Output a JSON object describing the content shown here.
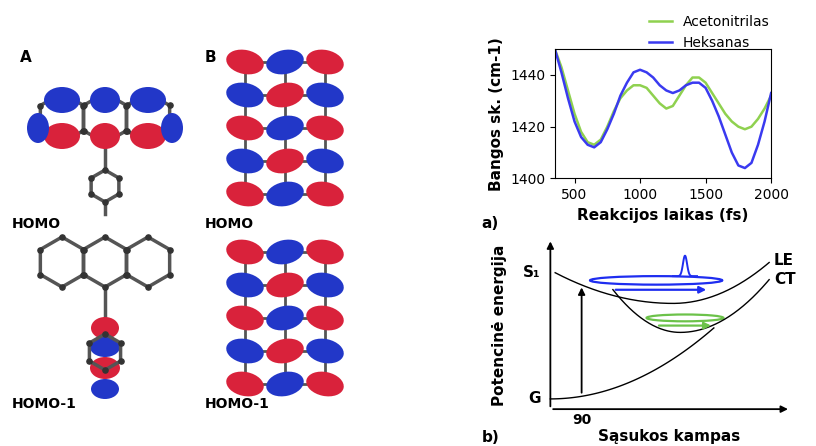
{
  "chart_data": {
    "type": "line",
    "panel_label": "a)",
    "x_label": "Reakcijos laikas (fs)",
    "y_label": "Bangos sk. (cm-1)",
    "x": [
      350,
      400,
      450,
      500,
      550,
      600,
      650,
      700,
      750,
      800,
      850,
      900,
      950,
      1000,
      1050,
      1100,
      1150,
      1200,
      1250,
      1300,
      1350,
      1400,
      1450,
      1500,
      1550,
      1600,
      1650,
      1700,
      1750,
      1800,
      1850,
      1900,
      1950,
      2000
    ],
    "series": [
      {
        "name": "Acetonitrilas",
        "color": "#8fd14f",
        "values": [
          1450,
          1443,
          1434,
          1425,
          1418,
          1414,
          1413,
          1415,
          1420,
          1426,
          1431,
          1434,
          1436,
          1436,
          1435,
          1432,
          1429,
          1427,
          1428,
          1432,
          1436,
          1439,
          1439,
          1437,
          1433,
          1429,
          1425,
          1422,
          1420,
          1419,
          1420,
          1423,
          1427,
          1432
        ]
      },
      {
        "name": "Heksanas",
        "color": "#3a3af0",
        "values": [
          1450,
          1441,
          1431,
          1422,
          1416,
          1413,
          1412,
          1414,
          1419,
          1425,
          1432,
          1437,
          1441,
          1442,
          1441,
          1439,
          1436,
          1434,
          1433,
          1434,
          1436,
          1437,
          1437,
          1435,
          1430,
          1424,
          1417,
          1410,
          1405,
          1404,
          1406,
          1413,
          1422,
          1433
        ]
      }
    ],
    "xlim": [
      350,
      2000
    ],
    "xticks": [
      500,
      1000,
      1500,
      2000
    ],
    "ylim": [
      1400,
      1450
    ],
    "yticks": [
      1400,
      1420,
      1440
    ],
    "legend": "upper right",
    "grid": false
  },
  "orbital_panels": [
    {
      "label": "A",
      "orbitals": [
        "HOMO",
        "HOMO-1"
      ]
    },
    {
      "label": "B",
      "orbitals": [
        "HOMO",
        "HOMO-1"
      ]
    }
  ],
  "energy_diagram": {
    "panel_label": "b)",
    "y_label": "Potencinė energija",
    "x_label": "Sąsukos kampas",
    "x_mark": "90",
    "states": [
      "S₁",
      "G"
    ],
    "curves": [
      "LE",
      "CT"
    ]
  }
}
